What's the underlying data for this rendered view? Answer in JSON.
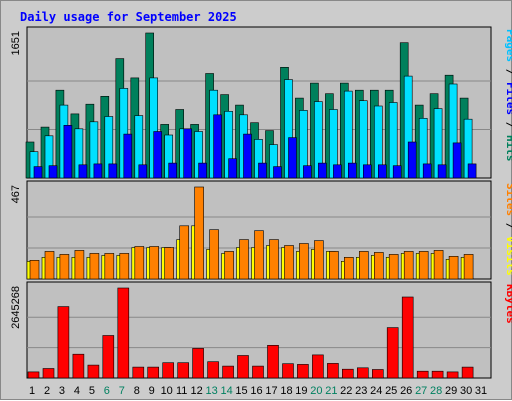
{
  "chart_data": {
    "title": "Daily usage for September 2025",
    "type": "bar",
    "categories": [
      "1",
      "2",
      "3",
      "4",
      "5",
      "6",
      "7",
      "8",
      "9",
      "10",
      "11",
      "12",
      "13",
      "14",
      "15",
      "16",
      "17",
      "18",
      "19",
      "20",
      "21",
      "22",
      "23",
      "24",
      "25",
      "26",
      "27",
      "28",
      "29",
      "30",
      "31"
    ],
    "weekend_days": [
      "6",
      "7",
      "13",
      "14",
      "20",
      "21",
      "27",
      "28"
    ],
    "colors": {
      "title": "#0000ff",
      "weekday_tick": "#000000",
      "weekend_tick": "#008060",
      "hits": "#00805c",
      "files": "#00e0ff",
      "pages": "#00c0ff",
      "visits": "#ffff00",
      "sites": "#ff8000",
      "kbytes": "#ff0000",
      "grid": "#888888",
      "plot_bg": "#c0c0c0"
    },
    "panels": [
      {
        "max_label": "1651",
        "ymax": 1651,
        "right_labels": [
          {
            "text": "Pages",
            "color": "#00c0ff"
          },
          {
            "text": " / ",
            "color": "#000000"
          },
          {
            "text": "Files",
            "color": "#0000ff"
          },
          {
            "text": " / ",
            "color": "#000000"
          },
          {
            "text": "Hits",
            "color": "#00805c"
          }
        ],
        "series": [
          {
            "name": "Hits",
            "color": "#00805c",
            "values": [
              410,
              580,
              1000,
              730,
              840,
              930,
              1360,
              1140,
              1651,
              610,
              780,
              610,
              1190,
              950,
              830,
              630,
              540,
              1260,
              910,
              1080,
              960,
              1080,
              1000,
              1000,
              1000,
              1540,
              830,
              960,
              1170,
              910,
              0
            ]
          },
          {
            "name": "Files",
            "color": "#00e0ff",
            "values": [
              300,
              480,
              830,
              560,
              640,
              700,
              1020,
              710,
              1140,
              490,
              560,
              530,
              1000,
              760,
              720,
              440,
              380,
              1120,
              770,
              870,
              780,
              990,
              880,
              820,
              860,
              1160,
              680,
              790,
              1070,
              670,
              0
            ]
          },
          {
            "name": "Pages",
            "color": "#0000ff",
            "values": [
              130,
              140,
              600,
              150,
              160,
              160,
              500,
              150,
              530,
              170,
              560,
              170,
              720,
              220,
              500,
              170,
              130,
              460,
              140,
              170,
              150,
              170,
              150,
              150,
              140,
              410,
              160,
              150,
              400,
              160,
              0
            ]
          }
        ]
      },
      {
        "max_label": "467",
        "ymax": 467,
        "right_labels": [
          {
            "text": "Sites",
            "color": "#ff8000"
          },
          {
            "text": " / ",
            "color": "#000000"
          },
          {
            "text": "Visits",
            "color": "#ffff00"
          }
        ],
        "series": [
          {
            "name": "Visits",
            "color": "#ffff00",
            "values": [
              90,
              110,
              110,
              110,
              110,
              120,
              120,
              160,
              160,
              160,
              200,
              270,
              150,
              130,
              160,
              160,
              170,
              160,
              140,
              150,
              140,
              90,
              110,
              120,
              110,
              130,
              130,
              130,
              100,
              110,
              0
            ]
          },
          {
            "name": "Sites",
            "color": "#ff8000",
            "values": [
              95,
              140,
              125,
              145,
              130,
              130,
              130,
              165,
              165,
              160,
              270,
              467,
              250,
              140,
              200,
              245,
              200,
              170,
              180,
              195,
              140,
              110,
              140,
              135,
              125,
              140,
              140,
              145,
              115,
              125,
              0
            ]
          }
        ]
      },
      {
        "max_label": "2645268",
        "ymax": 2645268,
        "right_labels": [
          {
            "text": "KBytes",
            "color": "#ff0000"
          }
        ],
        "series": [
          {
            "name": "KBytes",
            "color": "#ff0000",
            "values": [
              180000,
              280000,
              2100000,
              700000,
              380000,
              1250000,
              2645268,
              320000,
              320000,
              450000,
              450000,
              870000,
              480000,
              350000,
              660000,
              350000,
              960000,
              420000,
              400000,
              680000,
              430000,
              260000,
              300000,
              250000,
              1480000,
              2380000,
              200000,
              200000,
              180000,
              320000,
              0
            ]
          }
        ]
      }
    ]
  }
}
